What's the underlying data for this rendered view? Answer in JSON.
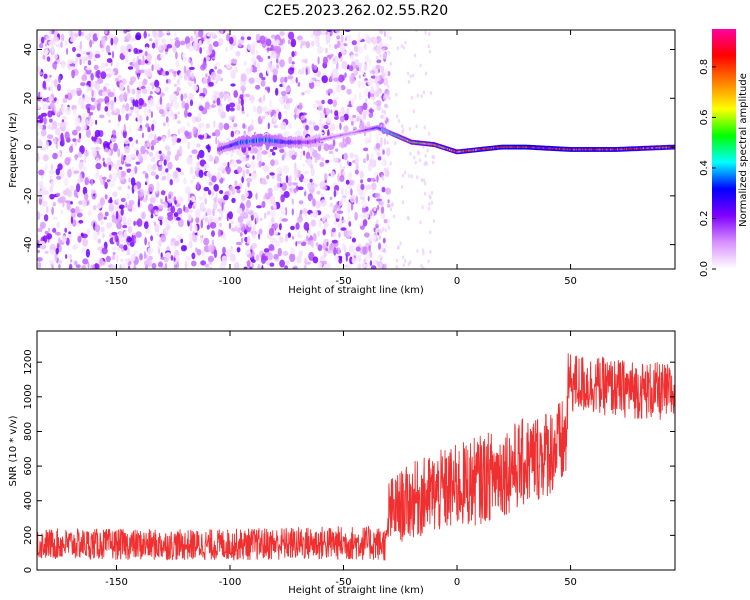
{
  "title": "C2E5.2023.262.02.55.R20",
  "chart_data": [
    {
      "type": "heatmap",
      "xlabel": "Height of straight line (km)",
      "ylabel": "Frequency (Hz)",
      "xlim": [
        -185,
        96
      ],
      "ylim": [
        -50,
        48
      ],
      "xticks": [
        -150,
        -100,
        -50,
        0,
        50
      ],
      "yticks": [
        -40,
        -20,
        0,
        20,
        40
      ],
      "grid": false,
      "colorbar": {
        "label": "Normalized spectral amplitude",
        "range": [
          0,
          0.95
        ],
        "ticks": [
          0.0,
          0.2,
          0.4,
          0.6,
          0.8
        ],
        "colors": [
          "#ffffff",
          "#d890ff",
          "#8000ff",
          "#0000ff",
          "#00ffff",
          "#00ff00",
          "#ffff00",
          "#ff8000",
          "#ff0000",
          "#ff00a0"
        ]
      },
      "noise_region_x": [
        -185,
        -35
      ],
      "signal_ridge": {
        "x": [
          -105,
          -95,
          -85,
          -75,
          -65,
          -45,
          -40,
          -35,
          -30,
          -25,
          -20,
          -10,
          0,
          10,
          20,
          30,
          50,
          70,
          96
        ],
        "frequency": [
          -1,
          2,
          3,
          2,
          2,
          6,
          7,
          8,
          6,
          4,
          2,
          1,
          -2,
          -1,
          0,
          0,
          -1,
          -1,
          0
        ],
        "amplitude": [
          0.25,
          0.35,
          0.4,
          0.3,
          0.2,
          0.15,
          0.25,
          0.35,
          0.45,
          0.55,
          0.6,
          0.7,
          0.75,
          0.8,
          0.85,
          0.9,
          0.85,
          0.85,
          0.8
        ]
      }
    },
    {
      "type": "line",
      "xlabel": "Height of straight line (km)",
      "ylabel": "SNR (10 * v/v)",
      "xlim": [
        -185,
        96
      ],
      "ylim": [
        0,
        1380
      ],
      "xticks": [
        -150,
        -100,
        -50,
        0,
        50
      ],
      "yticks": [
        0,
        200,
        400,
        600,
        800,
        1000,
        1200
      ],
      "grid": false,
      "series": [
        {
          "color": "#f03030",
          "x": [
            -185,
            -160,
            -135,
            -110,
            -85,
            -60,
            -40,
            -31,
            -30,
            -20,
            -10,
            0,
            10,
            20,
            30,
            40,
            48,
            49,
            60,
            70,
            80,
            96
          ],
          "mean": [
            150,
            150,
            145,
            145,
            150,
            155,
            155,
            150,
            330,
            400,
            440,
            480,
            520,
            570,
            620,
            680,
            740,
            1080,
            1070,
            1050,
            1040,
            1020
          ],
          "spread": [
            90,
            90,
            90,
            90,
            95,
            100,
            100,
            100,
            200,
            220,
            240,
            250,
            260,
            260,
            260,
            260,
            260,
            180,
            170,
            170,
            170,
            170
          ]
        }
      ]
    }
  ]
}
